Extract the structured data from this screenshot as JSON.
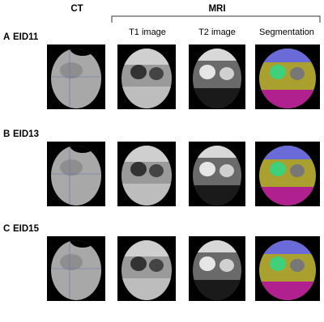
{
  "headers": {
    "ct": "CT",
    "mri": "MRI",
    "columns": [
      "T1 image",
      "T2 image",
      "Segmentation"
    ]
  },
  "rows": [
    {
      "letter": "A",
      "id": "EID11"
    },
    {
      "letter": "B",
      "id": "EID13"
    },
    {
      "letter": "C",
      "id": "EID15"
    }
  ]
}
